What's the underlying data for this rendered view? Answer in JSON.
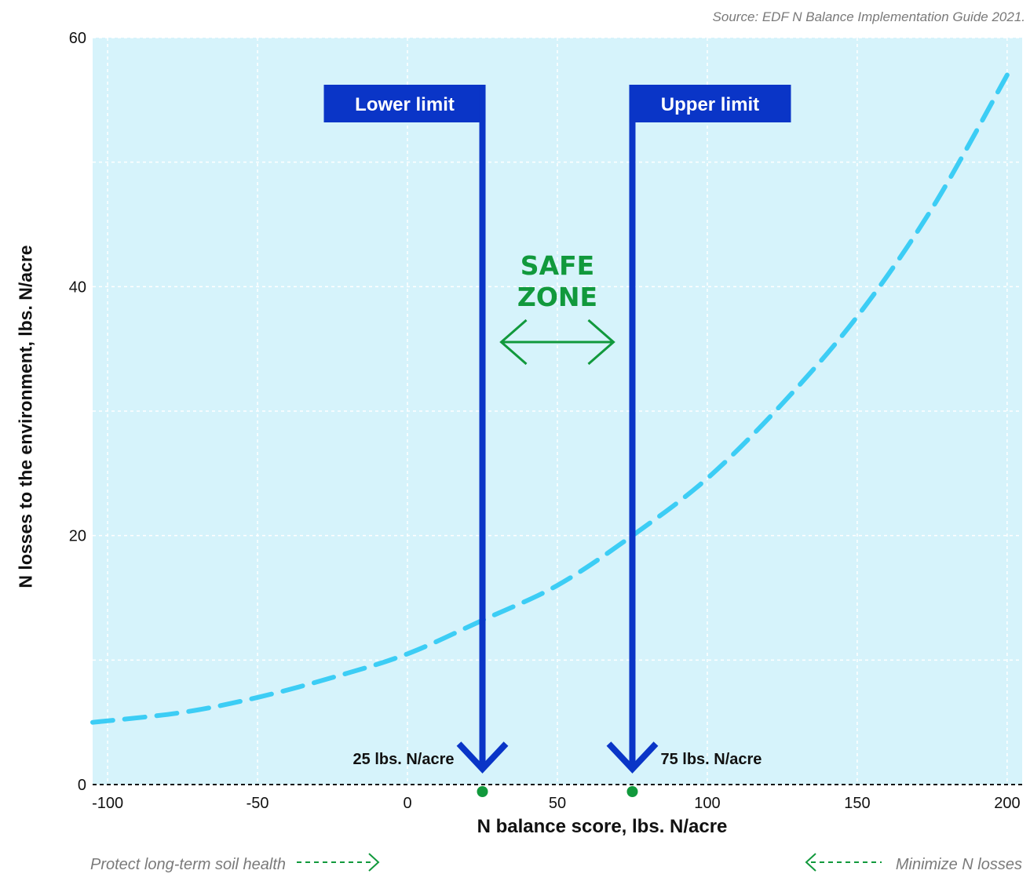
{
  "source_text": "Source: EDF N Balance Implementation Guide 2021.",
  "notes": {
    "left": "Protect long-term soil health",
    "right": "Minimize N losses"
  },
  "colors": {
    "plot_background": "#d6f3fb",
    "curve": "#3ccdf5",
    "limit_lines": "#0a35c7",
    "safe_zone": "#11993c",
    "grid": "#ffffff"
  },
  "chart_data": {
    "type": "line",
    "title": "",
    "xlabel": "N balance score, lbs. N/acre",
    "ylabel": "N losses to the environment, lbs. N/acre",
    "xlim": [
      -105,
      205
    ],
    "ylim": [
      0,
      60
    ],
    "x_ticks": [
      -100,
      -50,
      0,
      50,
      100,
      150,
      200
    ],
    "y_ticks": [
      0,
      20,
      40,
      60
    ],
    "grid": true,
    "series": [
      {
        "style": "dashed",
        "x": [
          -105,
          -75,
          -50,
          -25,
          0,
          25,
          50,
          75,
          100,
          125,
          150,
          175,
          200
        ],
        "y": [
          5.0,
          5.8,
          7.0,
          8.6,
          10.5,
          13.2,
          16.0,
          20.0,
          24.6,
          30.6,
          37.6,
          46.3,
          57.0
        ]
      }
    ],
    "limits": [
      {
        "label": "Lower limit",
        "x": 25,
        "value_label": "25 lbs. N/acre"
      },
      {
        "label": "Upper limit",
        "x": 75,
        "value_label": "75 lbs. N/acre"
      }
    ],
    "safe_zone": {
      "lines": [
        "SAFE",
        "ZONE"
      ],
      "x_range": [
        25,
        75
      ]
    }
  }
}
